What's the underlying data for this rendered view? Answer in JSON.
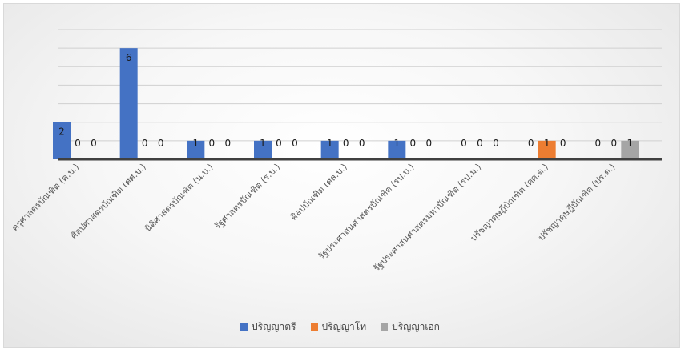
{
  "chart_data": {
    "type": "bar",
    "categories": [
      "ครุศาสตรบัณฑิต (ค.บ.)",
      "ศิลปศาสตรบัณฑิต (ศศ.บ.)",
      "นิติศาสตรบัณฑิต (น.บ.)",
      "รัฐศาสตรบัณฑิต (ร.บ.)",
      "ศิลปบัณฑิต (ศล.บ.)",
      "รัฐประศาสนศาสตรบัณฑิต (รป.บ.)",
      "รัฐประศาสนศาสตรมหาบัณฑิต (รป.ม.)",
      "ปรัชญาดุษฎีบัณฑิต (ศศ.ด.)",
      "ปรัชญาดุษฎีบัณฑิต (ปร.ด.)"
    ],
    "series": [
      {
        "name": "ปริญญาตรี",
        "color": "#4472c4",
        "values": [
          2,
          6,
          1,
          1,
          1,
          1,
          0,
          0,
          0
        ]
      },
      {
        "name": "ปริญญาโท",
        "color": "#ed7d31",
        "values": [
          0,
          0,
          0,
          0,
          0,
          0,
          0,
          1,
          0
        ]
      },
      {
        "name": "ปริญญาเอก",
        "color": "#a5a5a5",
        "values": [
          0,
          0,
          0,
          0,
          0,
          0,
          0,
          0,
          1
        ]
      }
    ],
    "ylim": [
      0,
      7
    ],
    "gridlines": true,
    "data_labels": true,
    "legend_position": "bottom"
  }
}
